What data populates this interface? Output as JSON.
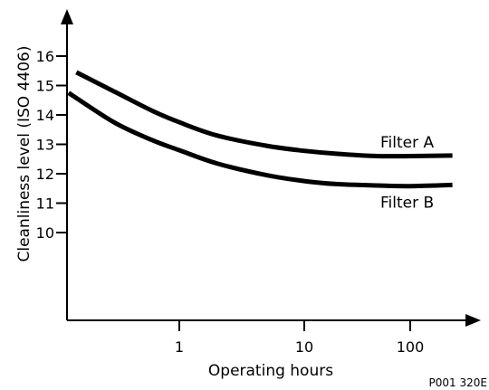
{
  "chart_data": {
    "type": "line",
    "title": "",
    "xlabel": "Operating hours",
    "ylabel": "Cleanliness level  (ISO 4406)",
    "x_scale": "log",
    "x_ticks": [
      {
        "value": 1,
        "label": "1"
      },
      {
        "value": 10,
        "label": "10"
      },
      {
        "value": 100,
        "label": "100"
      }
    ],
    "y_ticks": [
      {
        "value": 10,
        "label": "10"
      },
      {
        "value": 11,
        "label": "11"
      },
      {
        "value": 12,
        "label": "12"
      },
      {
        "value": 13,
        "label": "13"
      },
      {
        "value": 14,
        "label": "14"
      },
      {
        "value": 15,
        "label": "15"
      },
      {
        "value": 16,
        "label": "16"
      }
    ],
    "series": [
      {
        "name": "Filter A",
        "x": [
          0.15,
          0.3,
          0.6,
          1,
          2,
          5,
          10,
          20,
          50,
          100,
          250
        ],
        "y": [
          15.45,
          14.8,
          14.15,
          13.75,
          13.3,
          12.95,
          12.78,
          12.68,
          12.6,
          12.6,
          12.62
        ]
      },
      {
        "name": "Filter B",
        "x": [
          0.13,
          0.3,
          0.6,
          1,
          2,
          5,
          10,
          20,
          50,
          100,
          250
        ],
        "y": [
          14.75,
          13.75,
          13.15,
          12.8,
          12.35,
          11.95,
          11.75,
          11.65,
          11.6,
          11.58,
          11.62
        ]
      }
    ],
    "figure_code": "P001 320E"
  }
}
